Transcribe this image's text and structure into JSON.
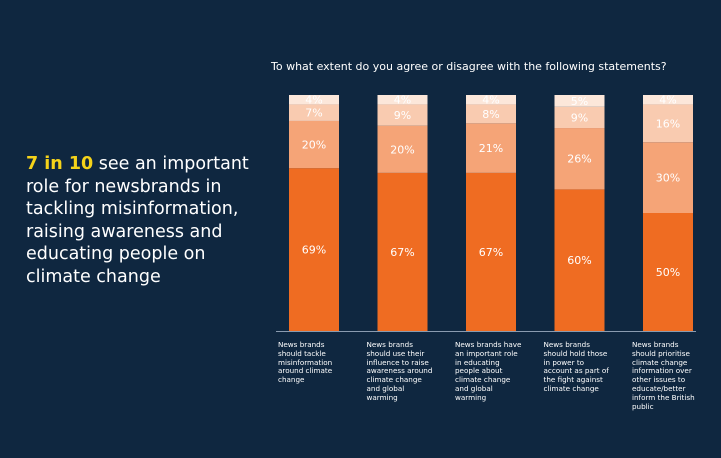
{
  "headline": {
    "highlight": "7 in 10",
    "text": " see an important role for newsbrands in tackling misinformation, raising awareness and educating people on climate change"
  },
  "colors": {
    "background": "#0f2740",
    "highlight": "#f5d31a",
    "seg1": "#ef6c22",
    "seg2": "#f5a477",
    "seg3": "#f9cbb0",
    "seg4": "#fce7da"
  },
  "chart_data": {
    "type": "bar",
    "stacked": true,
    "title": "To what extent do you agree or disagree with the following statements?",
    "categories": [
      "News brands should tackle misinformation around climate change",
      "News brands should use their influence to raise awareness around climate change and global warming",
      "News brands have an important role in educating people about climate change and global warming",
      "News brands should hold those in power to account as part of the fight against climate change",
      "News brands should prioritise climate change information over other issues to educate/better inform the British public"
    ],
    "series": [
      {
        "name": "segment-1",
        "values": [
          69,
          67,
          67,
          60,
          50
        ],
        "labels": [
          "69%",
          "67%",
          "67%",
          "60%",
          "50%"
        ]
      },
      {
        "name": "segment-2",
        "values": [
          20,
          20,
          21,
          26,
          30
        ],
        "labels": [
          "20%",
          "20%",
          "21%",
          "26%",
          "30%"
        ]
      },
      {
        "name": "segment-3",
        "values": [
          7,
          9,
          8,
          9,
          16
        ],
        "labels": [
          "7%",
          "9%",
          "8%",
          "9%",
          "16%"
        ]
      },
      {
        "name": "segment-4",
        "values": [
          4,
          4,
          4,
          5,
          4
        ],
        "labels": [
          "4%",
          "4%",
          "4%",
          "5%",
          "4%"
        ]
      }
    ],
    "ylim": [
      0,
      100
    ]
  }
}
